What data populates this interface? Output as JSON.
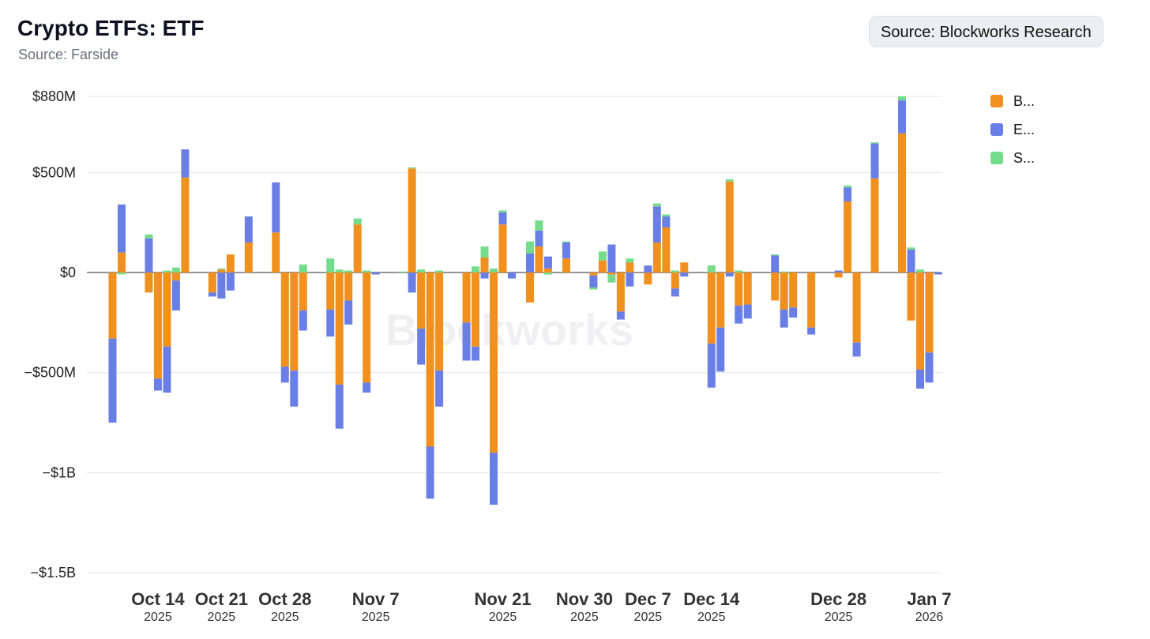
{
  "header": {
    "title": "Crypto ETFs: ETF",
    "subtitle": "Source: Farside",
    "source_badge": "Source: Blockworks Research"
  },
  "watermark": "Blockworks",
  "legend": [
    {
      "label": "B...",
      "color": "#f0901e"
    },
    {
      "label": "E...",
      "color": "#6a7fe6"
    },
    {
      "label": "S...",
      "color": "#74dc8a"
    }
  ],
  "chart_data": {
    "type": "bar",
    "stacked": true,
    "title": "Crypto ETFs: ETF",
    "subtitle": "Source: Farside",
    "ylim": [
      -1500,
      880
    ],
    "y_ticks": [
      {
        "value": 880,
        "label": "$880M"
      },
      {
        "value": 500,
        "label": "$500M"
      },
      {
        "value": 0,
        "label": "$0"
      },
      {
        "value": -500,
        "label": "−$500M"
      },
      {
        "value": -1000,
        "label": "−$1B"
      },
      {
        "value": -1500,
        "label": "−$1.5B"
      }
    ],
    "x_ticks": [
      {
        "date": "2025-10-14",
        "label": "Oct 14",
        "year": "2025"
      },
      {
        "date": "2025-10-21",
        "label": "Oct 21",
        "year": "2025"
      },
      {
        "date": "2025-10-28",
        "label": "Oct 28",
        "year": "2025"
      },
      {
        "date": "2025-11-07",
        "label": "Nov 7",
        "year": "2025"
      },
      {
        "date": "2025-11-21",
        "label": "Nov 21",
        "year": "2025"
      },
      {
        "date": "2025-11-30",
        "label": "Nov 30",
        "year": "2025"
      },
      {
        "date": "2025-12-07",
        "label": "Dec 7",
        "year": "2025"
      },
      {
        "date": "2025-12-14",
        "label": "Dec 14",
        "year": "2025"
      },
      {
        "date": "2025-12-28",
        "label": "Dec 28",
        "year": "2025"
      },
      {
        "date": "2026-01-07",
        "label": "Jan 7",
        "year": "2026"
      }
    ],
    "x_range": [
      "2025-10-08",
      "2026-01-08"
    ],
    "grid": true,
    "legend_position": "right",
    "series": [
      {
        "name": "B...",
        "color": "#f0901e"
      },
      {
        "name": "E...",
        "color": "#6a7fe6"
      },
      {
        "name": "S...",
        "color": "#74dc8a"
      }
    ],
    "bars": [
      {
        "date": "2025-10-09",
        "values": [
          -330,
          -420,
          0
        ]
      },
      {
        "date": "2025-10-10",
        "values": [
          100,
          240,
          -10
        ]
      },
      {
        "date": "2025-10-13",
        "values": [
          -100,
          170,
          20
        ]
      },
      {
        "date": "2025-10-14",
        "values": [
          -530,
          -60,
          0
        ]
      },
      {
        "date": "2025-10-15",
        "values": [
          -370,
          -230,
          10
        ]
      },
      {
        "date": "2025-10-16",
        "values": [
          -40,
          -150,
          25
        ]
      },
      {
        "date": "2025-10-17",
        "values": [
          475,
          140,
          0
        ]
      },
      {
        "date": "2025-10-20",
        "values": [
          -100,
          -20,
          0
        ]
      },
      {
        "date": "2025-10-21",
        "values": [
          15,
          -130,
          5
        ]
      },
      {
        "date": "2025-10-22",
        "values": [
          90,
          -90,
          0
        ]
      },
      {
        "date": "2025-10-24",
        "values": [
          150,
          130,
          0
        ]
      },
      {
        "date": "2025-10-27",
        "values": [
          200,
          250,
          0
        ]
      },
      {
        "date": "2025-10-28",
        "values": [
          -470,
          -80,
          0
        ]
      },
      {
        "date": "2025-10-29",
        "values": [
          -490,
          -180,
          0
        ]
      },
      {
        "date": "2025-10-30",
        "values": [
          -190,
          -100,
          40
        ]
      },
      {
        "date": "2025-11-02",
        "values": [
          -185,
          -135,
          70
        ]
      },
      {
        "date": "2025-11-03",
        "values": [
          -560,
          -220,
          15
        ]
      },
      {
        "date": "2025-11-04",
        "values": [
          -140,
          -120,
          10
        ]
      },
      {
        "date": "2025-11-05",
        "values": [
          240,
          0,
          30
        ]
      },
      {
        "date": "2025-11-06",
        "values": [
          -550,
          -50,
          10
        ]
      },
      {
        "date": "2025-11-07",
        "values": [
          0,
          -10,
          0
        ]
      },
      {
        "date": "2025-11-10",
        "values": [
          0,
          0,
          5
        ]
      },
      {
        "date": "2025-11-11",
        "values": [
          520,
          -100,
          5
        ]
      },
      {
        "date": "2025-11-12",
        "values": [
          -280,
          -180,
          15
        ]
      },
      {
        "date": "2025-11-13",
        "values": [
          -870,
          -260,
          0
        ]
      },
      {
        "date": "2025-11-14",
        "values": [
          -490,
          -180,
          10
        ]
      },
      {
        "date": "2025-11-17",
        "values": [
          -250,
          -190,
          0
        ]
      },
      {
        "date": "2025-11-18",
        "values": [
          -370,
          -70,
          30
        ]
      },
      {
        "date": "2025-11-19",
        "values": [
          75,
          -30,
          55
        ]
      },
      {
        "date": "2025-11-20",
        "values": [
          -900,
          -260,
          20
        ]
      },
      {
        "date": "2025-11-21",
        "values": [
          240,
          60,
          10
        ]
      },
      {
        "date": "2025-11-22",
        "values": [
          0,
          -30,
          0
        ]
      },
      {
        "date": "2025-11-24",
        "values": [
          -150,
          95,
          60
        ]
      },
      {
        "date": "2025-11-25",
        "values": [
          130,
          80,
          50
        ]
      },
      {
        "date": "2025-11-26",
        "values": [
          20,
          60,
          -10
        ]
      },
      {
        "date": "2025-11-28",
        "values": [
          70,
          80,
          5
        ]
      },
      {
        "date": "2025-12-01",
        "values": [
          -15,
          -60,
          -10
        ]
      },
      {
        "date": "2025-12-02",
        "values": [
          60,
          0,
          45
        ]
      },
      {
        "date": "2025-12-03",
        "values": [
          -10,
          140,
          -40
        ]
      },
      {
        "date": "2025-12-04",
        "values": [
          -195,
          -40,
          0
        ]
      },
      {
        "date": "2025-12-05",
        "values": [
          50,
          -70,
          20
        ]
      },
      {
        "date": "2025-12-07",
        "values": [
          -60,
          35,
          0
        ]
      },
      {
        "date": "2025-12-08",
        "values": [
          150,
          180,
          15
        ]
      },
      {
        "date": "2025-12-09",
        "values": [
          225,
          55,
          10
        ]
      },
      {
        "date": "2025-12-10",
        "values": [
          -80,
          -40,
          10
        ]
      },
      {
        "date": "2025-12-11",
        "values": [
          50,
          -20,
          0
        ]
      },
      {
        "date": "2025-12-14",
        "values": [
          -355,
          -220,
          35
        ]
      },
      {
        "date": "2025-12-15",
        "values": [
          -275,
          -220,
          0
        ]
      },
      {
        "date": "2025-12-16",
        "values": [
          455,
          -20,
          10
        ]
      },
      {
        "date": "2025-12-17",
        "values": [
          -165,
          -90,
          10
        ]
      },
      {
        "date": "2025-12-18",
        "values": [
          -160,
          -70,
          0
        ]
      },
      {
        "date": "2025-12-21",
        "values": [
          -140,
          85,
          5
        ]
      },
      {
        "date": "2025-12-22",
        "values": [
          -185,
          -90,
          5
        ]
      },
      {
        "date": "2025-12-23",
        "values": [
          -175,
          -50,
          0
        ]
      },
      {
        "date": "2025-12-25",
        "values": [
          -275,
          -35,
          0
        ]
      },
      {
        "date": "2025-12-28",
        "values": [
          -25,
          10,
          0
        ]
      },
      {
        "date": "2025-12-29",
        "values": [
          355,
          70,
          10
        ]
      },
      {
        "date": "2025-12-30",
        "values": [
          -350,
          -70,
          0
        ]
      },
      {
        "date": "2026-01-01",
        "values": [
          470,
          175,
          5
        ]
      },
      {
        "date": "2026-01-04",
        "values": [
          695,
          165,
          20
        ]
      },
      {
        "date": "2026-01-05",
        "values": [
          -240,
          115,
          10
        ]
      },
      {
        "date": "2026-01-06",
        "values": [
          -485,
          -95,
          15
        ]
      },
      {
        "date": "2026-01-07",
        "values": [
          -400,
          -150,
          0
        ]
      },
      {
        "date": "2026-01-08",
        "values": [
          0,
          -10,
          0
        ]
      }
    ]
  }
}
